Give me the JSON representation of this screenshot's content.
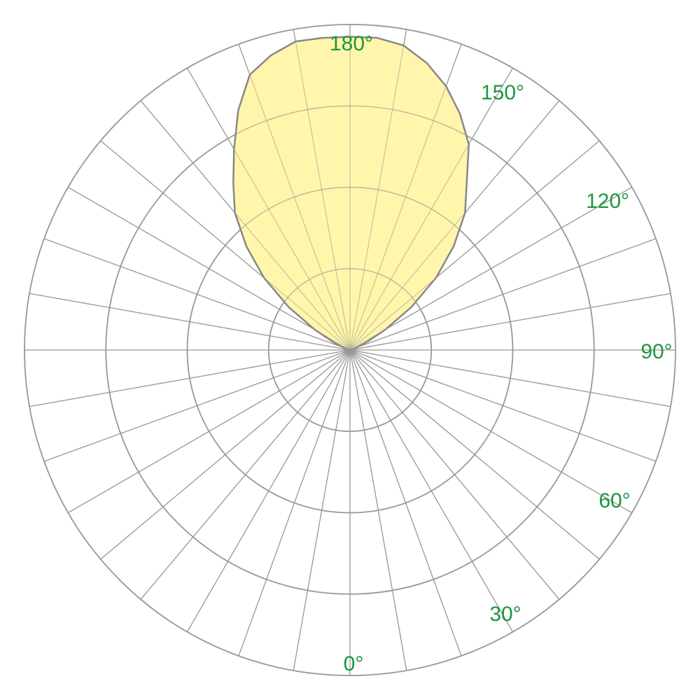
{
  "chart_data": {
    "type": "polar",
    "angle_unit": "degrees",
    "zero_direction": "bottom",
    "angle_direction": "counterclockwise-on-right-side",
    "angle_step": 10,
    "radial_rings": [
      1,
      2,
      3,
      4
    ],
    "radial_max": 4,
    "grid": true,
    "angle_tick_labels": [
      {
        "angle": 0,
        "text": "0°"
      },
      {
        "angle": 30,
        "text": "30°"
      },
      {
        "angle": 60,
        "text": "60°"
      },
      {
        "angle": 90,
        "text": "90°"
      },
      {
        "angle": 120,
        "text": "120°"
      },
      {
        "angle": 150,
        "text": "150°"
      },
      {
        "angle": 180,
        "text": "180°"
      }
    ],
    "series": [
      {
        "fill_color": "#fff59d",
        "line_color": "#888888",
        "points": [
          {
            "angle": 180,
            "r": 3.85
          },
          {
            "angle": 175,
            "r": 3.85
          },
          {
            "angle": 170,
            "r": 3.8
          },
          {
            "angle": 165,
            "r": 3.65
          },
          {
            "angle": 160,
            "r": 3.45
          },
          {
            "angle": 155,
            "r": 3.2
          },
          {
            "angle": 150,
            "r": 2.92
          },
          {
            "angle": 145,
            "r": 2.5
          },
          {
            "angle": 140,
            "r": 2.2
          },
          {
            "angle": 135,
            "r": 1.8
          },
          {
            "angle": 130,
            "r": 1.38
          },
          {
            "angle": 125,
            "r": 0.92
          },
          {
            "angle": 120,
            "r": 0.5
          },
          {
            "angle": 115,
            "r": 0.22
          },
          {
            "angle": 110,
            "r": 0.08
          },
          {
            "angle": 105,
            "r": 0.02
          },
          {
            "angle": 100,
            "r": 0
          },
          {
            "angle": 260,
            "r": 0
          },
          {
            "angle": 255,
            "r": 0.02
          },
          {
            "angle": 250,
            "r": 0.08
          },
          {
            "angle": 245,
            "r": 0.22
          },
          {
            "angle": 240,
            "r": 0.5
          },
          {
            "angle": 235,
            "r": 0.92
          },
          {
            "angle": 230,
            "r": 1.38
          },
          {
            "angle": 225,
            "r": 1.8
          },
          {
            "angle": 220,
            "r": 2.2
          },
          {
            "angle": 215,
            "r": 2.5
          },
          {
            "angle": 210,
            "r": 2.85
          },
          {
            "angle": 205,
            "r": 3.25
          },
          {
            "angle": 200,
            "r": 3.6
          },
          {
            "angle": 195,
            "r": 3.75
          },
          {
            "angle": 190,
            "r": 3.85
          },
          {
            "angle": 185,
            "r": 3.85
          }
        ]
      }
    ]
  },
  "colors": {
    "grid": "#999999",
    "label": "#1e9640",
    "background": "#ffffff"
  }
}
